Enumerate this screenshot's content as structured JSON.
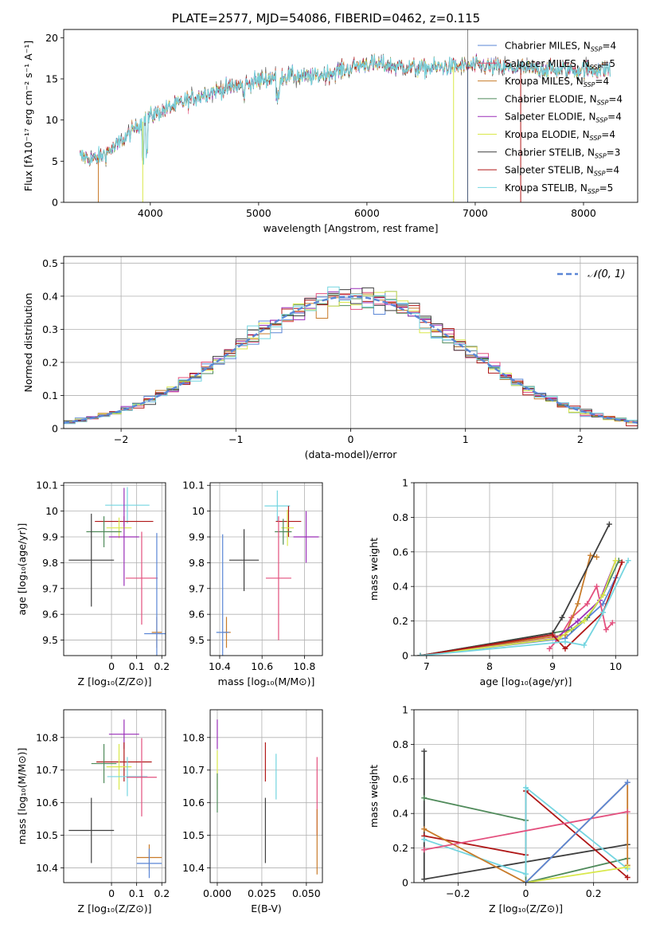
{
  "figure": {
    "title": "PLATE=2577, MJD=54086, FIBERID=0462, z=0.115"
  },
  "legend_entries": [
    {
      "name": "Chabrier MILES",
      "nssp": "4",
      "color": "#5a86d6"
    },
    {
      "name": "Salpeter MILES",
      "nssp": "5",
      "color": "#e3507e"
    },
    {
      "name": "Kroupa MILES",
      "nssp": "4",
      "color": "#c87b2a"
    },
    {
      "name": "Chabrier ELODIE",
      "nssp": "4",
      "color": "#4f8a5a"
    },
    {
      "name": "Salpeter ELODIE",
      "nssp": "4",
      "color": "#9a2fb8"
    },
    {
      "name": "Kroupa ELODIE",
      "nssp": "4",
      "color": "#d9e84a"
    },
    {
      "name": "Chabrier STELIB",
      "nssp": "3",
      "color": "#3f3f3f"
    },
    {
      "name": "Salpeter STELIB",
      "nssp": "4",
      "color": "#b01818"
    },
    {
      "name": "Kroupa STELIB",
      "nssp": "5",
      "color": "#74d5e0"
    }
  ],
  "nssp_label": "N",
  "nssp_sub": "SSP",
  "normal_legend": "𝒩(0, 1)",
  "chart_data": [
    {
      "id": "spectrum",
      "type": "line",
      "xlabel": "wavelength [Angstrom, rest frame]",
      "ylabel": "Flux [fλ10⁻¹⁷ erg cm⁻² s⁻¹ A⁻¹]",
      "xlim": [
        3200,
        8500
      ],
      "ylim": [
        0,
        21
      ],
      "xticks": [
        4000,
        5000,
        6000,
        7000,
        8000
      ],
      "yticks": [
        0,
        5,
        10,
        15,
        20
      ],
      "continuum_x": [
        3350,
        3500,
        3700,
        3900,
        4000,
        4200,
        4500,
        5000,
        5200,
        5500,
        6000,
        6500,
        7000,
        7500,
        8000,
        8250
      ],
      "continuum_y": [
        5.6,
        5.2,
        7.0,
        9.5,
        10.5,
        11.6,
        13.2,
        14.8,
        15.4,
        15.2,
        16.8,
        16.3,
        16.6,
        16.2,
        16.1,
        16.2
      ]
    },
    {
      "id": "residuals",
      "type": "histogram",
      "xlabel": "(data-model)/error",
      "ylabel": "Normed distribution",
      "xlim": [
        -2.5,
        2.5
      ],
      "ylim": [
        0,
        0.52
      ],
      "xticks": [
        -2,
        -1,
        0,
        1,
        2
      ],
      "yticks": [
        0.0,
        0.1,
        0.2,
        0.3,
        0.4,
        0.5
      ],
      "bin_width": 0.1,
      "mean": 0,
      "sigma": 1
    },
    {
      "id": "age-vs-Z",
      "type": "errorbar",
      "xlabel": "Z [log₁₀(Z/Z⊙)]",
      "ylabel": "age  [log₁₀(age/yr)]",
      "xlim": [
        -0.19,
        0.215
      ],
      "ylim": [
        9.44,
        10.11
      ],
      "xticks": [
        0.0,
        0.1,
        0.2
      ],
      "yticks": [
        9.5,
        9.6,
        9.7,
        9.8,
        9.9,
        10.0,
        10.1
      ],
      "points": [
        {
          "x": 0.063,
          "y": 10.023,
          "xerr": 0.088,
          "yerr": 0.07,
          "color": "#74d5e0"
        },
        {
          "x": 0.05,
          "y": 9.96,
          "xerr": 0.116,
          "yerr": 0.02,
          "color": "#b01818"
        },
        {
          "x": 0.03,
          "y": 9.935,
          "xerr": 0.05,
          "yerr": 0.04,
          "color": "#d9e84a"
        },
        {
          "x": -0.03,
          "y": 9.92,
          "xerr": 0.07,
          "yerr": 0.06,
          "color": "#4f8a5a"
        },
        {
          "x": 0.05,
          "y": 9.9,
          "xerr": 0.06,
          "yerr": 0.19,
          "color": "#9a2fb8"
        },
        {
          "x": -0.08,
          "y": 9.81,
          "xerr": 0.09,
          "yerr": 0.18,
          "color": "#3f3f3f"
        },
        {
          "x": 0.12,
          "y": 9.74,
          "xerr": 0.064,
          "yerr": 0.18,
          "color": "#e3507e"
        },
        {
          "x": 0.18,
          "y": 9.53,
          "xerr": 0.02,
          "yerr": 0.06,
          "color": "#c87b2a"
        },
        {
          "x": 0.18,
          "y": 9.525,
          "xerr": 0.05,
          "yerr": 0.39,
          "color": "#5a86d6"
        }
      ]
    },
    {
      "id": "age-vs-mass",
      "type": "errorbar",
      "xlabel": "mass [log₁₀(M/M⊙)]",
      "ylabel": "",
      "xlim": [
        10.355,
        10.885
      ],
      "ylim": [
        9.44,
        10.11
      ],
      "xticks": [
        10.4,
        10.6,
        10.8
      ],
      "yticks": [
        9.5,
        9.6,
        9.7,
        9.8,
        9.9,
        10.0,
        10.1
      ],
      "points": [
        {
          "x": 10.672,
          "y": 10.02,
          "xerr": 0.06,
          "yerr": 0.06,
          "color": "#74d5e0"
        },
        {
          "x": 10.725,
          "y": 9.96,
          "xerr": 0.06,
          "yerr": 0.06,
          "color": "#b01818"
        },
        {
          "x": 10.72,
          "y": 9.935,
          "xerr": 0.03,
          "yerr": 0.07,
          "color": "#d9e84a"
        },
        {
          "x": 10.7,
          "y": 9.92,
          "xerr": 0.04,
          "yerr": 0.05,
          "color": "#4f8a5a"
        },
        {
          "x": 10.808,
          "y": 9.9,
          "xerr": 0.06,
          "yerr": 0.1,
          "color": "#9a2fb8"
        },
        {
          "x": 10.515,
          "y": 9.81,
          "xerr": 0.07,
          "yerr": 0.12,
          "color": "#3f3f3f"
        },
        {
          "x": 10.678,
          "y": 9.74,
          "xerr": 0.06,
          "yerr": 0.24,
          "color": "#e3507e"
        },
        {
          "x": 10.432,
          "y": 9.53,
          "xerr": 0.02,
          "yerr": 0.06,
          "color": "#c87b2a"
        },
        {
          "x": 10.414,
          "y": 9.53,
          "xerr": 0.03,
          "yerr": 0.38,
          "color": "#5a86d6"
        }
      ]
    },
    {
      "id": "weight-vs-age",
      "type": "line",
      "xlabel": "age  [log₁₀(age/yr)]",
      "ylabel": "mass weight",
      "xlim": [
        6.8,
        10.35
      ],
      "ylim": [
        0,
        1.0
      ],
      "xticks": [
        7,
        8,
        9,
        10
      ],
      "yticks": [
        0.0,
        0.2,
        0.4,
        0.6,
        0.8,
        1.0
      ],
      "series": [
        {
          "color": "#5a86d6",
          "x": [
            6.9,
            9.2,
            9.5,
            9.8,
            10.0
          ],
          "y": [
            0.0,
            0.1,
            0.2,
            0.3,
            0.45
          ]
        },
        {
          "color": "#e3507e",
          "x": [
            8.95,
            9.1,
            9.3,
            9.55,
            9.7,
            9.85,
            9.95
          ],
          "y": [
            0.04,
            0.1,
            0.22,
            0.3,
            0.4,
            0.15,
            0.19
          ]
        },
        {
          "color": "#c87b2a",
          "x": [
            6.9,
            9.2,
            9.4,
            9.6,
            9.7
          ],
          "y": [
            0.0,
            0.12,
            0.3,
            0.58,
            0.57
          ]
        },
        {
          "color": "#4f8a5a",
          "x": [
            6.9,
            9.3,
            9.55,
            9.8,
            10.05
          ],
          "y": [
            0.0,
            0.15,
            0.22,
            0.35,
            0.55
          ]
        },
        {
          "color": "#9a2fb8",
          "x": [
            6.9,
            9.05,
            9.4,
            9.75,
            10.0
          ],
          "y": [
            0.0,
            0.1,
            0.2,
            0.32,
            0.55
          ]
        },
        {
          "color": "#d9e84a",
          "x": [
            6.9,
            9.1,
            9.5,
            9.8,
            10.0
          ],
          "y": [
            0.0,
            0.1,
            0.2,
            0.35,
            0.55
          ]
        },
        {
          "color": "#3f3f3f",
          "x": [
            6.9,
            9.0,
            9.15,
            9.9
          ],
          "y": [
            0.0,
            0.13,
            0.22,
            0.76
          ]
        },
        {
          "color": "#b01818",
          "x": [
            6.9,
            9.0,
            9.2,
            9.8,
            10.1
          ],
          "y": [
            0.0,
            0.12,
            0.04,
            0.25,
            0.54
          ]
        },
        {
          "color": "#74d5e0",
          "x": [
            6.9,
            9.2,
            9.5,
            9.8,
            10.2
          ],
          "y": [
            0.0,
            0.08,
            0.06,
            0.25,
            0.55
          ]
        }
      ]
    },
    {
      "id": "mass-vs-Z",
      "type": "errorbar",
      "xlabel": "Z [log₁₀(Z/Z⊙)]",
      "ylabel": "mass [log₁₀(M/M⊙)]",
      "xlim": [
        -0.19,
        0.215
      ],
      "ylim": [
        10.355,
        10.885
      ],
      "xticks": [
        0.0,
        0.1,
        0.2
      ],
      "yticks": [
        10.4,
        10.5,
        10.6,
        10.7,
        10.8
      ],
      "points": [
        {
          "x": 0.05,
          "y": 10.81,
          "xerr": 0.06,
          "yerr": 0.045,
          "color": "#9a2fb8"
        },
        {
          "x": 0.05,
          "y": 10.725,
          "xerr": 0.11,
          "yerr": 0.06,
          "color": "#b01818"
        },
        {
          "x": -0.03,
          "y": 10.72,
          "xerr": 0.05,
          "yerr": 0.06,
          "color": "#4f8a5a"
        },
        {
          "x": 0.03,
          "y": 10.71,
          "xerr": 0.05,
          "yerr": 0.07,
          "color": "#d9e84a"
        },
        {
          "x": 0.063,
          "y": 10.68,
          "xerr": 0.08,
          "yerr": 0.06,
          "color": "#74d5e0"
        },
        {
          "x": 0.12,
          "y": 10.678,
          "xerr": 0.06,
          "yerr": 0.12,
          "color": "#e3507e"
        },
        {
          "x": -0.08,
          "y": 10.515,
          "xerr": 0.09,
          "yerr": 0.1,
          "color": "#3f3f3f"
        },
        {
          "x": 0.15,
          "y": 10.432,
          "xerr": 0.05,
          "yerr": 0.04,
          "color": "#c87b2a"
        },
        {
          "x": 0.15,
          "y": 10.414,
          "xerr": 0.05,
          "yerr": 0.045,
          "color": "#5a86d6"
        }
      ]
    },
    {
      "id": "mass-vs-ebv",
      "type": "errorbar",
      "xlabel": "E(B-V)",
      "ylabel": "",
      "xlim": [
        -0.004,
        0.059
      ],
      "ylim": [
        10.355,
        10.885
      ],
      "xticks": [
        0.0,
        0.025,
        0.05
      ],
      "xticklabels": [
        "0.000",
        "0.025",
        "0.050"
      ],
      "yticks": [
        10.4,
        10.5,
        10.6,
        10.7,
        10.8
      ],
      "points": [
        {
          "x": 0.0,
          "y": 10.81,
          "xerr": 0,
          "yerr": 0.045,
          "color": "#9a2fb8"
        },
        {
          "x": 0.0,
          "y": 10.7,
          "xerr": 0,
          "yerr": 0.06,
          "color": "#d9e84a"
        },
        {
          "x": 0.0,
          "y": 10.63,
          "xerr": 0,
          "yerr": 0.06,
          "color": "#4f8a5a"
        },
        {
          "x": 0.027,
          "y": 10.725,
          "xerr": 0,
          "yerr": 0.06,
          "color": "#b01818"
        },
        {
          "x": 0.027,
          "y": 10.515,
          "xerr": 0,
          "yerr": 0.1,
          "color": "#3f3f3f"
        },
        {
          "x": 0.033,
          "y": 10.68,
          "xerr": 0,
          "yerr": 0.07,
          "color": "#74d5e0"
        },
        {
          "x": 0.056,
          "y": 10.62,
          "xerr": 0,
          "yerr": 0.12,
          "color": "#e3507e"
        },
        {
          "x": 0.056,
          "y": 10.48,
          "xerr": 0,
          "yerr": 0.1,
          "color": "#c87b2a"
        }
      ]
    },
    {
      "id": "weight-vs-Z",
      "type": "line",
      "xlabel": "Z [log₁₀(Z/Z⊙)]",
      "ylabel": "mass weight",
      "xlim": [
        -0.33,
        0.33
      ],
      "ylim": [
        0,
        1.0
      ],
      "xticks": [
        -0.2,
        0.0,
        0.2
      ],
      "yticks": [
        0.0,
        0.2,
        0.4,
        0.6,
        0.8,
        1.0
      ],
      "series": [
        {
          "color": "#3f3f3f",
          "x": [
            -0.3,
            -0.3,
            0.3
          ],
          "y": [
            0.76,
            0.02,
            0.22
          ]
        },
        {
          "color": "#4f8a5a",
          "x": [
            -0.3,
            0.0,
            0.0,
            0.3
          ],
          "y": [
            0.49,
            0.36,
            0.0,
            0.14
          ]
        },
        {
          "color": "#b01818",
          "x": [
            -0.3,
            0.0,
            0.0,
            0.3
          ],
          "y": [
            0.27,
            0.16,
            0.53,
            0.03
          ]
        },
        {
          "color": "#74d5e0",
          "x": [
            -0.3,
            0.0,
            0.0,
            0.3
          ],
          "y": [
            0.25,
            0.05,
            0.55,
            0.08
          ]
        },
        {
          "color": "#c87b2a",
          "x": [
            -0.3,
            0.0,
            0.3,
            0.3
          ],
          "y": [
            0.31,
            0.0,
            0.58,
            0.1
          ]
        },
        {
          "color": "#e3507e",
          "x": [
            -0.3,
            0.3
          ],
          "y": [
            0.19,
            0.41
          ]
        },
        {
          "color": "#d9e84a",
          "x": [
            0.0,
            0.3
          ],
          "y": [
            0.0,
            0.09
          ]
        },
        {
          "color": "#5a86d6",
          "x": [
            0.0,
            0.3
          ],
          "y": [
            0.0,
            0.58
          ]
        }
      ]
    }
  ]
}
